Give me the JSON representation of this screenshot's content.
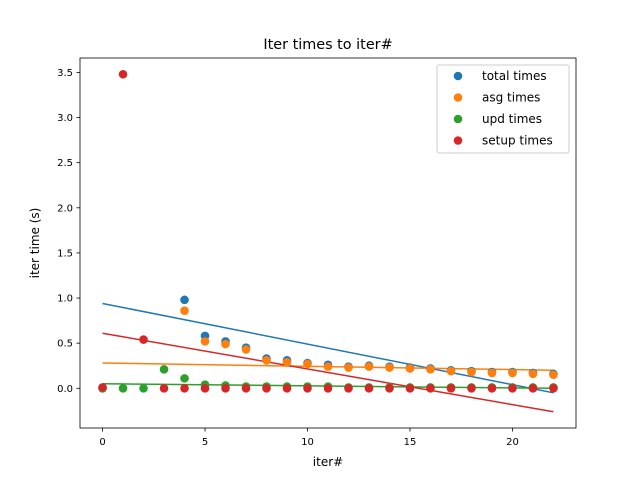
{
  "chart_data": {
    "type": "scatter",
    "title": "Iter times to iter#",
    "xlabel": "iter#",
    "ylabel": "iter time (s)",
    "xlim": [
      -1.1,
      23.1
    ],
    "ylim": [
      -0.44,
      3.66
    ],
    "x_ticks": [
      0,
      5,
      10,
      15,
      20
    ],
    "x_tick_labels": [
      "0",
      "5",
      "10",
      "15",
      "20"
    ],
    "y_ticks": [
      0.0,
      0.5,
      1.0,
      1.5,
      2.0,
      2.5,
      3.0,
      3.5
    ],
    "y_tick_labels": [
      "0.0",
      "0.5",
      "1.0",
      "1.5",
      "2.0",
      "2.5",
      "3.0",
      "3.5"
    ],
    "grid": false,
    "legend_position": "top-right",
    "series": [
      {
        "name": "total times",
        "color": "#1f77b4",
        "points": [
          [
            0,
            0.0
          ],
          [
            4,
            0.98
          ],
          [
            5,
            0.58
          ],
          [
            6,
            0.52
          ],
          [
            7,
            0.45
          ],
          [
            8,
            0.33
          ],
          [
            9,
            0.31
          ],
          [
            10,
            0.28
          ],
          [
            11,
            0.26
          ],
          [
            12,
            0.24
          ],
          [
            13,
            0.25
          ],
          [
            14,
            0.24
          ],
          [
            15,
            0.23
          ],
          [
            16,
            0.22
          ],
          [
            17,
            0.2
          ],
          [
            18,
            0.19
          ],
          [
            19,
            0.18
          ],
          [
            20,
            0.18
          ],
          [
            21,
            0.17
          ],
          [
            22,
            0.16
          ]
        ],
        "trend": [
          [
            0,
            0.94
          ],
          [
            22,
            -0.05
          ]
        ]
      },
      {
        "name": "asg times",
        "color": "#ff7f0e",
        "points": [
          [
            4,
            0.86
          ],
          [
            5,
            0.52
          ],
          [
            6,
            0.49
          ],
          [
            7,
            0.43
          ],
          [
            8,
            0.31
          ],
          [
            9,
            0.29
          ],
          [
            10,
            0.27
          ],
          [
            11,
            0.24
          ],
          [
            12,
            0.23
          ],
          [
            13,
            0.24
          ],
          [
            14,
            0.23
          ],
          [
            15,
            0.22
          ],
          [
            16,
            0.21
          ],
          [
            17,
            0.19
          ],
          [
            18,
            0.18
          ],
          [
            19,
            0.17
          ],
          [
            20,
            0.17
          ],
          [
            21,
            0.16
          ],
          [
            22,
            0.15
          ]
        ],
        "trend": [
          [
            0,
            0.28
          ],
          [
            22,
            0.2
          ]
        ]
      },
      {
        "name": "upd times",
        "color": "#2ca02c",
        "points": [
          [
            0,
            0.0
          ],
          [
            1,
            0.0
          ],
          [
            2,
            0.0
          ],
          [
            3,
            0.21
          ],
          [
            4,
            0.11
          ],
          [
            5,
            0.04
          ],
          [
            6,
            0.03
          ],
          [
            7,
            0.02
          ],
          [
            8,
            0.02
          ],
          [
            9,
            0.02
          ],
          [
            10,
            0.02
          ],
          [
            11,
            0.02
          ],
          [
            12,
            0.01
          ],
          [
            13,
            0.01
          ],
          [
            14,
            0.01
          ],
          [
            15,
            0.01
          ],
          [
            16,
            0.01
          ],
          [
            17,
            0.01
          ],
          [
            18,
            0.01
          ],
          [
            19,
            0.01
          ],
          [
            20,
            0.01
          ],
          [
            21,
            0.01
          ],
          [
            22,
            0.01
          ]
        ],
        "trend": [
          [
            0,
            0.05
          ],
          [
            22,
            0.0
          ]
        ]
      },
      {
        "name": "setup times",
        "color": "#d62728",
        "points": [
          [
            0,
            0.01
          ],
          [
            1,
            3.48
          ],
          [
            2,
            0.54
          ],
          [
            3,
            0.0
          ],
          [
            4,
            0.0
          ],
          [
            5,
            0.0
          ],
          [
            6,
            0.0
          ],
          [
            7,
            0.0
          ],
          [
            8,
            0.0
          ],
          [
            9,
            0.0
          ],
          [
            10,
            0.0
          ],
          [
            11,
            0.0
          ],
          [
            12,
            0.0
          ],
          [
            13,
            0.0
          ],
          [
            14,
            0.0
          ],
          [
            15,
            0.0
          ],
          [
            16,
            0.0
          ],
          [
            17,
            0.0
          ],
          [
            18,
            0.0
          ],
          [
            19,
            0.0
          ],
          [
            20,
            0.0
          ],
          [
            21,
            0.0
          ],
          [
            22,
            0.0
          ]
        ],
        "trend": [
          [
            0,
            0.61
          ],
          [
            22,
            -0.26
          ]
        ]
      }
    ]
  }
}
